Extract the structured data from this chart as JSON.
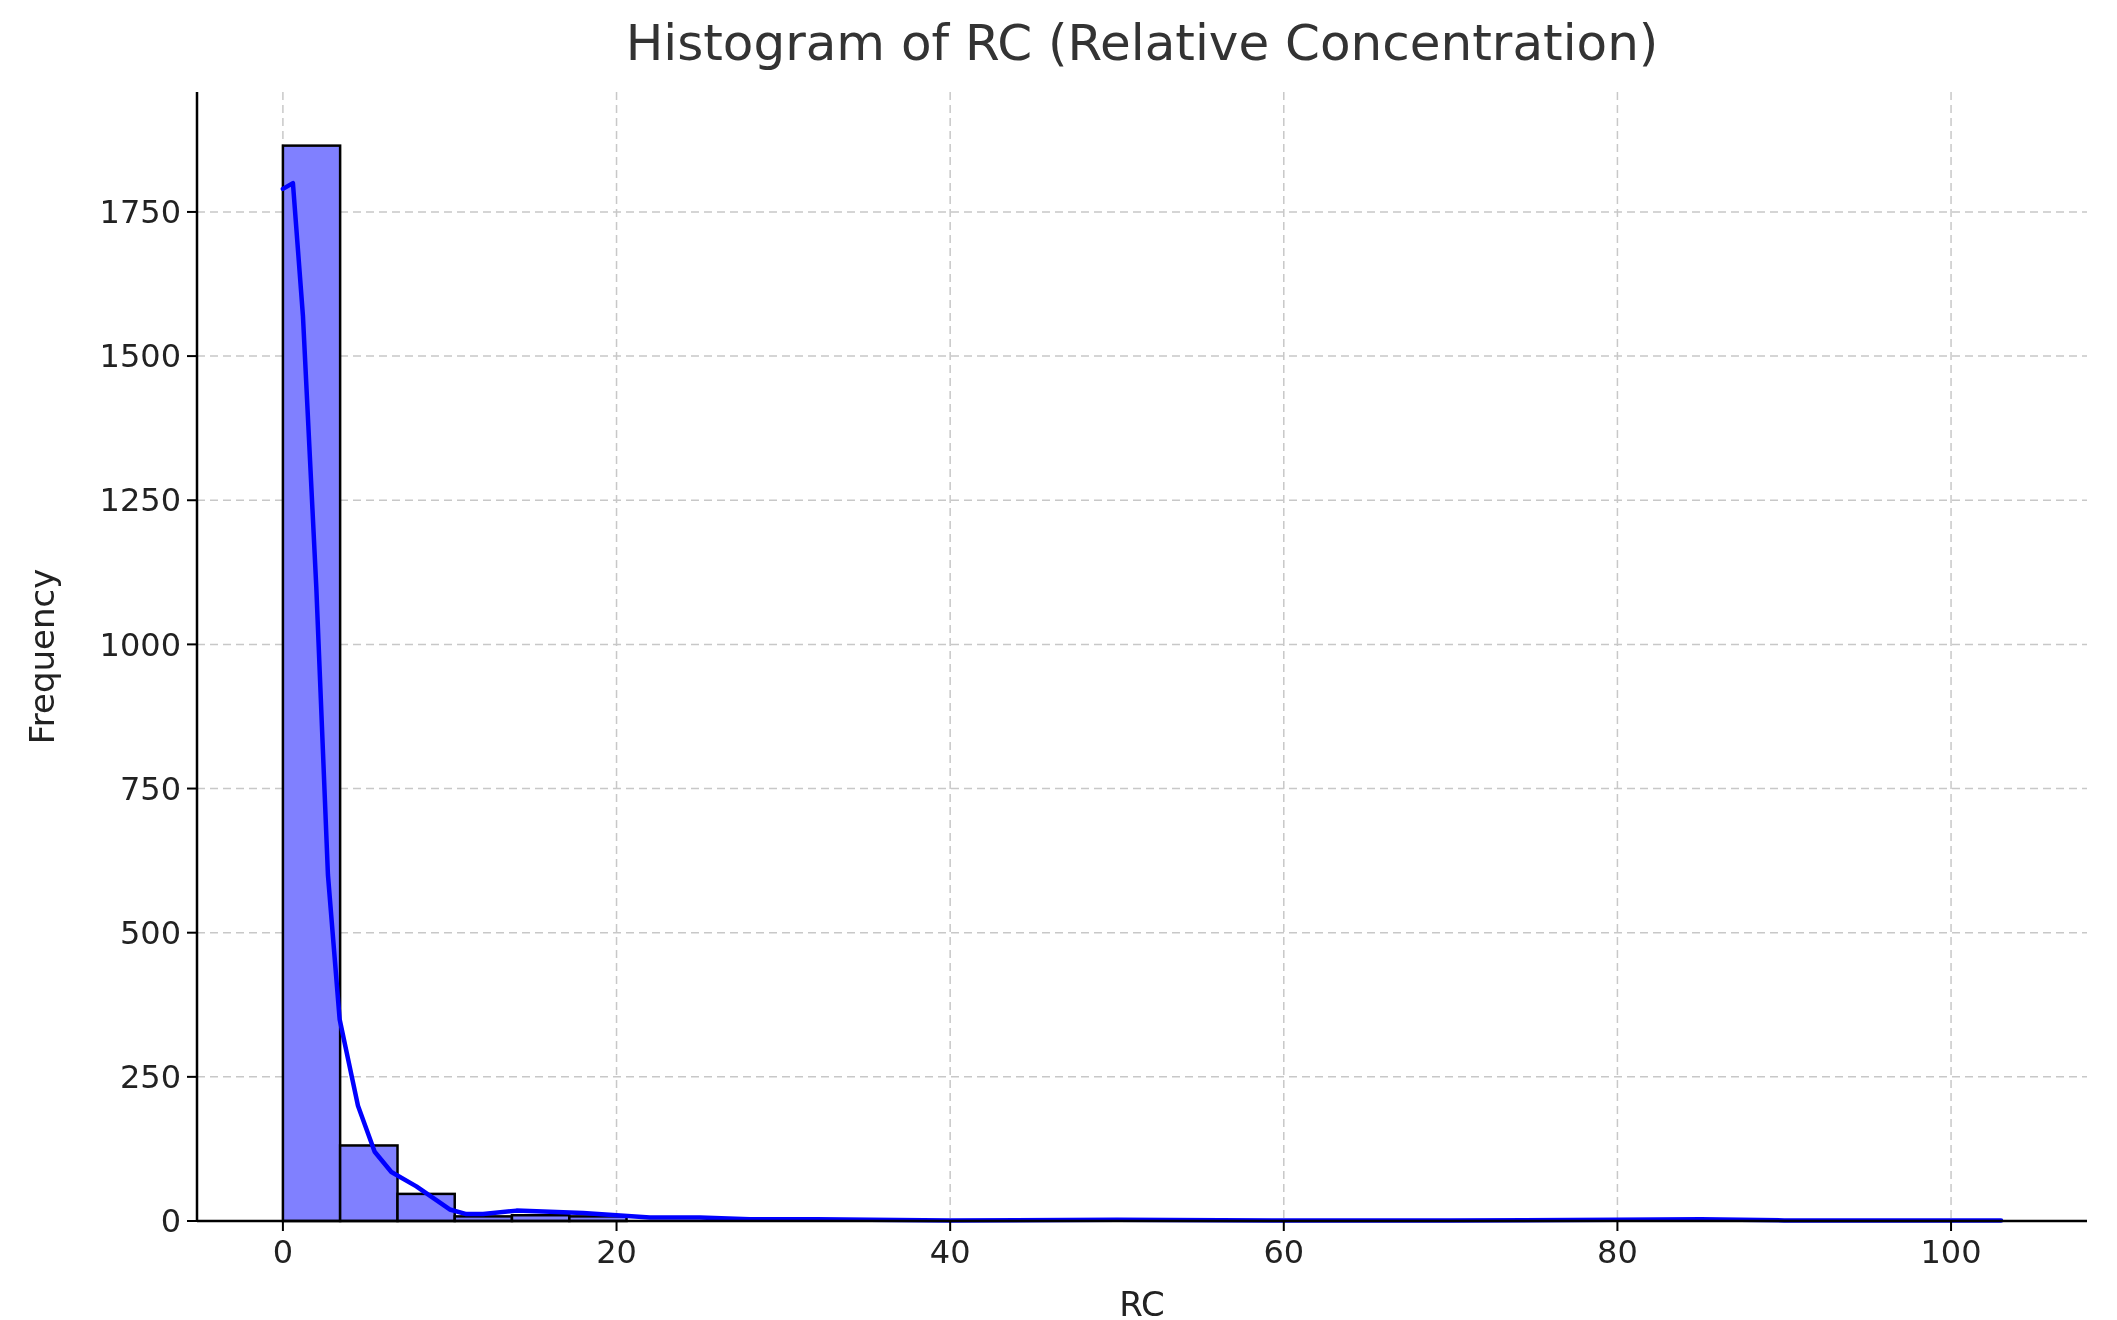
{
  "chart_data": {
    "type": "histogram",
    "title": "Histogram of RC (Relative Concentration)",
    "xlabel": "RC",
    "ylabel": "Frequency",
    "bins": [
      0,
      3.43,
      6.87,
      10.3,
      13.73,
      17.17,
      20.6
    ],
    "values": [
      1865,
      131,
      47,
      8,
      10,
      8
    ],
    "color": "#8080ff",
    "series": [
      {
        "type": "line",
        "color": "#0000ff",
        "x": [
          0,
          0.6,
          1.2,
          2,
          2.7,
          3.4,
          4.5,
          5.5,
          6.5,
          8,
          9,
          10,
          11,
          12,
          14,
          16,
          18,
          20,
          22,
          25,
          28,
          32,
          40,
          50,
          60,
          70,
          80,
          85,
          90,
          100,
          103
        ],
        "values": [
          1790,
          1800,
          1570,
          1100,
          600,
          350,
          200,
          120,
          85,
          60,
          40,
          20,
          12,
          12,
          18,
          16,
          14,
          10,
          6,
          6,
          3,
          3,
          1,
          2,
          1,
          1,
          2,
          3,
          1,
          1,
          1
        ]
      }
    ],
    "xlim": [
      -5.15,
      108.15
    ],
    "xticks": [
      0,
      20,
      40,
      60,
      80,
      100
    ],
    "ylim": [
      0,
      1958
    ],
    "yticks": [
      0,
      250,
      500,
      750,
      1000,
      1250,
      1500,
      1750
    ],
    "grid": true,
    "line_style": "solid"
  }
}
